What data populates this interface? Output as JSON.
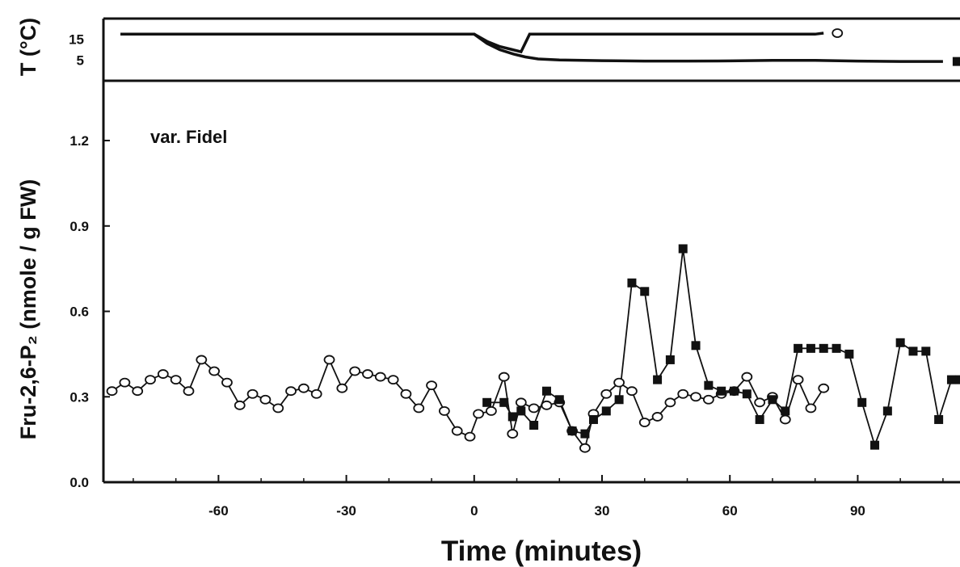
{
  "chart_data": [
    {
      "type": "line",
      "panel": "temperature",
      "ylabel": "T (°C)",
      "yticks": [
        15,
        5
      ],
      "ylim": [
        -5,
        25
      ],
      "xlim": [
        -87,
        114
      ],
      "series": [
        {
          "marker": "circle-open",
          "end_label": "○",
          "x": [
            -83,
            0,
            3,
            6,
            9,
            11,
            13,
            20,
            30,
            40,
            50,
            60,
            70,
            80,
            82
          ],
          "y": [
            17.5,
            17.5,
            14,
            11.5,
            10,
            9,
            17.5,
            17.5,
            17.5,
            17.5,
            17.5,
            17.5,
            17.5,
            17.5,
            18
          ]
        },
        {
          "marker": "square-filled",
          "end_label": "■",
          "x": [
            -83,
            0,
            3,
            6,
            9,
            12,
            15,
            20,
            30,
            40,
            50,
            60,
            70,
            80,
            90,
            100,
            110
          ],
          "y": [
            17.5,
            17.5,
            13,
            10,
            8,
            6.5,
            5.5,
            5,
            4.7,
            4.5,
            4.5,
            4.6,
            4.8,
            4.8,
            4.5,
            4.3,
            4.3
          ]
        }
      ]
    },
    {
      "type": "line",
      "panel": "fru26p2",
      "annotation": "var. Fidel",
      "xlabel": "Time (minutes)",
      "ylabel": "Fru-2,6-P₂ (nmole / g FW)",
      "xticks": [
        -60,
        -30,
        0,
        30,
        60,
        90
      ],
      "yticks": [
        0.0,
        0.3,
        0.6,
        0.9,
        1.2
      ],
      "ytick_labels": [
        "0.0",
        "0.3",
        "0.6",
        "0.9",
        "1.2"
      ],
      "xlim": [
        -87,
        114
      ],
      "ylim": [
        0.0,
        1.41
      ],
      "series": [
        {
          "marker": "circle-open",
          "x": [
            -85,
            -82,
            -79,
            -76,
            -73,
            -70,
            -67,
            -64,
            -61,
            -58,
            -55,
            -52,
            -49,
            -46,
            -43,
            -40,
            -37,
            -34,
            -31,
            -28,
            -25,
            -22,
            -19,
            -16,
            -13,
            -10,
            -7,
            -4,
            -1,
            1,
            4,
            7,
            9,
            11,
            14,
            17,
            20,
            23,
            26,
            28,
            31,
            34,
            37,
            40,
            43,
            46,
            49,
            52,
            55,
            58,
            61,
            64,
            67,
            70,
            73,
            76,
            79,
            82
          ],
          "y": [
            0.32,
            0.35,
            0.32,
            0.36,
            0.38,
            0.36,
            0.32,
            0.43,
            0.39,
            0.35,
            0.27,
            0.31,
            0.29,
            0.26,
            0.32,
            0.33,
            0.31,
            0.43,
            0.33,
            0.39,
            0.38,
            0.37,
            0.36,
            0.31,
            0.26,
            0.34,
            0.25,
            0.18,
            0.16,
            0.24,
            0.25,
            0.37,
            0.17,
            0.28,
            0.26,
            0.27,
            0.28,
            0.18,
            0.12,
            0.24,
            0.31,
            0.35,
            0.32,
            0.21,
            0.23,
            0.28,
            0.31,
            0.3,
            0.29,
            0.31,
            0.32,
            0.37,
            0.28,
            0.3,
            0.22,
            0.36,
            0.26,
            0.33
          ]
        },
        {
          "marker": "square-filled",
          "x": [
            3,
            7,
            9,
            11,
            14,
            17,
            20,
            23,
            26,
            28,
            31,
            34,
            37,
            40,
            43,
            46,
            49,
            52,
            55,
            58,
            61,
            64,
            67,
            70,
            73,
            76,
            79,
            82,
            85,
            88,
            91,
            94,
            97,
            100,
            103,
            106,
            109,
            112,
            114
          ],
          "y": [
            0.28,
            0.28,
            0.23,
            0.25,
            0.2,
            0.32,
            0.29,
            0.18,
            0.17,
            0.22,
            0.25,
            0.29,
            0.7,
            0.67,
            0.36,
            0.43,
            0.82,
            0.48,
            0.34,
            0.32,
            0.32,
            0.31,
            0.22,
            0.29,
            0.25,
            0.47,
            0.47,
            0.47,
            0.47,
            0.45,
            0.28,
            0.13,
            0.25,
            0.49,
            0.46,
            0.46,
            0.22,
            0.36,
            0.36
          ]
        }
      ]
    }
  ]
}
